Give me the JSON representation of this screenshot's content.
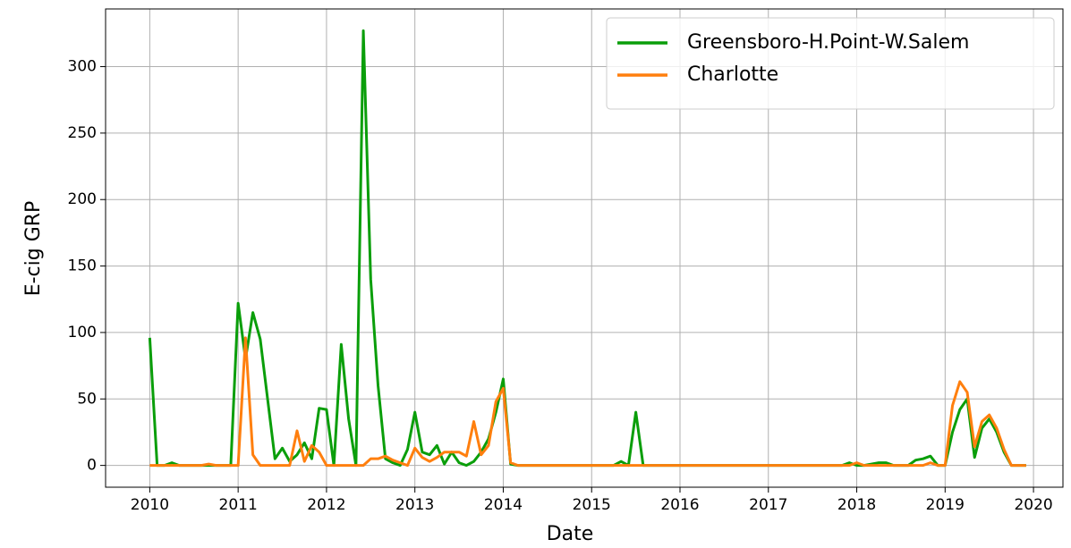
{
  "chart_data": {
    "type": "line",
    "xlabel": "Date",
    "ylabel": "E-cig GRP",
    "x": [
      "2010-01",
      "2010-02",
      "2010-03",
      "2010-04",
      "2010-05",
      "2010-06",
      "2010-07",
      "2010-08",
      "2010-09",
      "2010-10",
      "2010-11",
      "2010-12",
      "2011-01",
      "2011-02",
      "2011-03",
      "2011-04",
      "2011-05",
      "2011-06",
      "2011-07",
      "2011-08",
      "2011-09",
      "2011-10",
      "2011-11",
      "2011-12",
      "2012-01",
      "2012-02",
      "2012-03",
      "2012-04",
      "2012-05",
      "2012-06",
      "2012-07",
      "2012-08",
      "2012-09",
      "2012-10",
      "2012-11",
      "2012-12",
      "2013-01",
      "2013-02",
      "2013-03",
      "2013-04",
      "2013-05",
      "2013-06",
      "2013-07",
      "2013-08",
      "2013-09",
      "2013-10",
      "2013-11",
      "2013-12",
      "2014-01",
      "2014-02",
      "2014-03",
      "2014-04",
      "2014-05",
      "2014-06",
      "2014-07",
      "2014-08",
      "2014-09",
      "2014-10",
      "2014-11",
      "2014-12",
      "2015-01",
      "2015-02",
      "2015-03",
      "2015-04",
      "2015-05",
      "2015-06",
      "2015-07",
      "2015-08",
      "2015-09",
      "2015-10",
      "2015-11",
      "2015-12",
      "2016-01",
      "2016-02",
      "2016-03",
      "2016-04",
      "2016-05",
      "2016-06",
      "2016-07",
      "2016-08",
      "2016-09",
      "2016-10",
      "2016-11",
      "2016-12",
      "2017-01",
      "2017-02",
      "2017-03",
      "2017-04",
      "2017-05",
      "2017-06",
      "2017-07",
      "2017-08",
      "2017-09",
      "2017-10",
      "2017-11",
      "2017-12",
      "2018-01",
      "2018-02",
      "2018-03",
      "2018-04",
      "2018-05",
      "2018-06",
      "2018-07",
      "2018-08",
      "2018-09",
      "2018-10",
      "2018-11",
      "2018-12",
      "2019-01",
      "2019-02",
      "2019-03",
      "2019-04",
      "2019-05",
      "2019-06",
      "2019-07",
      "2019-08",
      "2019-09",
      "2019-10",
      "2019-11",
      "2019-12"
    ],
    "series": [
      {
        "name": "Greensboro-H.Point-W.Salem",
        "color": "#0a9e0a",
        "values": [
          96,
          0,
          0,
          2,
          0,
          0,
          0,
          0,
          0,
          0,
          0,
          0,
          122,
          80,
          115,
          95,
          50,
          5,
          13,
          3,
          8,
          17,
          5,
          43,
          42,
          0,
          91,
          35,
          0,
          327,
          140,
          60,
          5,
          2,
          0,
          12,
          40,
          10,
          8,
          15,
          1,
          10,
          2,
          0,
          3,
          10,
          20,
          40,
          65,
          1,
          0,
          0,
          0,
          0,
          0,
          0,
          0,
          0,
          0,
          0,
          0,
          0,
          0,
          0,
          3,
          0,
          40,
          0,
          0,
          0,
          0,
          0,
          0,
          0,
          0,
          0,
          0,
          0,
          0,
          0,
          0,
          0,
          0,
          0,
          0,
          0,
          0,
          0,
          0,
          0,
          0,
          0,
          0,
          0,
          0,
          2,
          0,
          0,
          1,
          2,
          2,
          0,
          0,
          0,
          4,
          5,
          7,
          0,
          0,
          25,
          42,
          50,
          6,
          28,
          35,
          25,
          10,
          0,
          0,
          0
        ]
      },
      {
        "name": "Charlotte",
        "color": "#ff7f0e",
        "values": [
          0,
          0,
          0,
          0,
          0,
          0,
          0,
          0,
          1,
          0,
          0,
          0,
          0,
          96,
          8,
          0,
          0,
          0,
          0,
          0,
          26,
          3,
          15,
          10,
          0,
          0,
          0,
          0,
          0,
          0,
          5,
          5,
          7,
          4,
          2,
          0,
          13,
          6,
          3,
          6,
          10,
          10,
          10,
          7,
          33,
          8,
          15,
          48,
          58,
          2,
          0,
          0,
          0,
          0,
          0,
          0,
          0,
          0,
          0,
          0,
          0,
          0,
          0,
          0,
          0,
          0,
          0,
          0,
          0,
          0,
          0,
          0,
          0,
          0,
          0,
          0,
          0,
          0,
          0,
          0,
          0,
          0,
          0,
          0,
          0,
          0,
          0,
          0,
          0,
          0,
          0,
          0,
          0,
          0,
          0,
          0,
          2,
          0,
          0,
          0,
          0,
          0,
          0,
          0,
          0,
          0,
          2,
          0,
          0,
          45,
          63,
          55,
          14,
          33,
          38,
          28,
          12,
          0,
          0,
          0
        ]
      }
    ],
    "xlim": [
      "2009-07",
      "2020-05"
    ],
    "xticks": [
      2010,
      2011,
      2012,
      2013,
      2014,
      2015,
      2016,
      2017,
      2018,
      2019,
      2020
    ],
    "ylim": [
      -16.4,
      343.4
    ],
    "yticks": [
      0,
      50,
      100,
      150,
      200,
      250,
      300
    ],
    "grid": true,
    "legend": "upper right"
  }
}
